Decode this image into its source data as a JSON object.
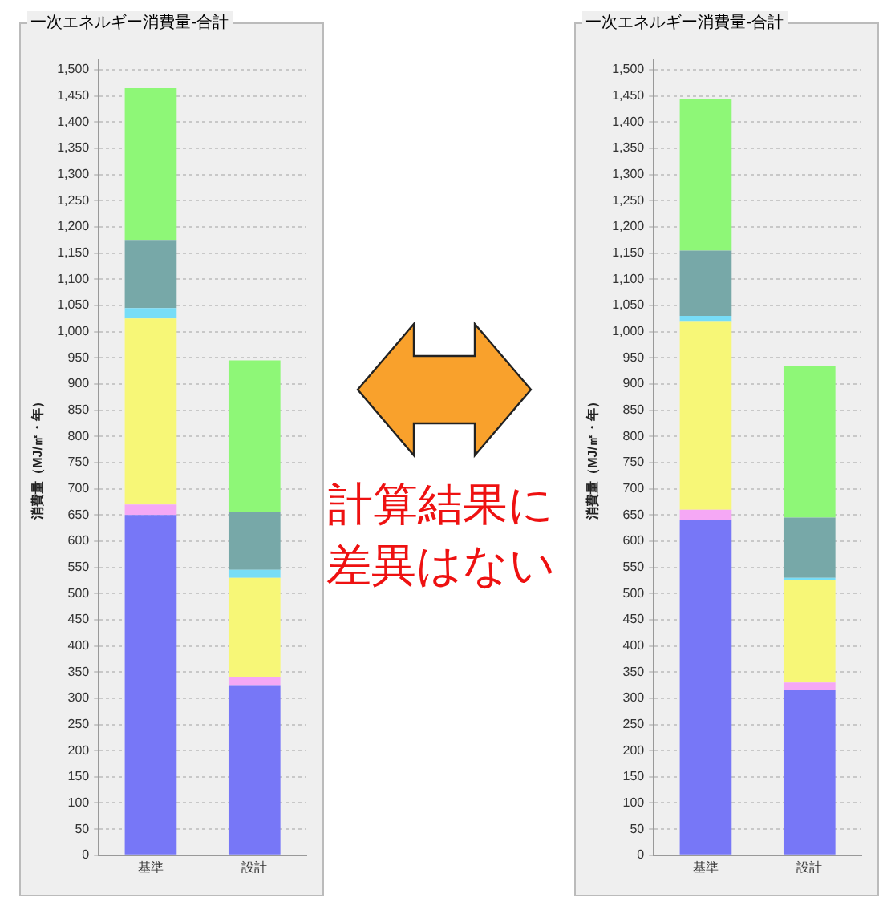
{
  "chart_data": [
    {
      "type": "bar",
      "title": "一次エネルギー消費量-合計",
      "ylabel": "消費量（MJ/㎡・年）",
      "categories": [
        "基準",
        "設計"
      ],
      "stacked": true,
      "series": [
        {
          "color": "#7777f7",
          "values": [
            650,
            325
          ]
        },
        {
          "color": "#f5a8f5",
          "values": [
            20,
            15
          ]
        },
        {
          "color": "#f7f777",
          "values": [
            355,
            190
          ]
        },
        {
          "color": "#77ddf7",
          "values": [
            20,
            15
          ]
        },
        {
          "color": "#77a8a8",
          "values": [
            130,
            110
          ]
        },
        {
          "color": "#8ef777",
          "values": [
            290,
            290
          ]
        }
      ],
      "ylim": [
        0,
        1520
      ],
      "yticks": [
        0,
        50,
        100,
        150,
        200,
        250,
        300,
        350,
        400,
        450,
        500,
        550,
        600,
        650,
        700,
        750,
        800,
        850,
        900,
        950,
        {
          "value": 1000,
          "label": "1,000"
        },
        {
          "value": 1050,
          "label": "1,050"
        },
        {
          "value": 1100,
          "label": "1,100"
        },
        {
          "value": 1150,
          "label": "1,150"
        },
        {
          "value": 1200,
          "label": "1,200"
        },
        {
          "value": 1250,
          "label": "1,250"
        },
        {
          "value": 1300,
          "label": "1,300"
        },
        {
          "value": 1350,
          "label": "1,350"
        },
        {
          "value": 1400,
          "label": "1,400"
        },
        {
          "value": 1450,
          "label": "1,450"
        },
        {
          "value": 1500,
          "label": "1,500"
        }
      ],
      "grid": "y",
      "legend": false
    },
    {
      "type": "bar",
      "title": "一次エネルギー消費量-合計",
      "ylabel": "消費量（MJ/㎡・年）",
      "categories": [
        "基準",
        "設計"
      ],
      "stacked": true,
      "series": [
        {
          "color": "#7777f7",
          "values": [
            640,
            315
          ]
        },
        {
          "color": "#f5a8f5",
          "values": [
            20,
            15
          ]
        },
        {
          "color": "#f7f777",
          "values": [
            360,
            195
          ]
        },
        {
          "color": "#77ddf7",
          "values": [
            10,
            5
          ]
        },
        {
          "color": "#77a8a8",
          "values": [
            125,
            115
          ]
        },
        {
          "color": "#8ef777",
          "values": [
            290,
            290
          ]
        }
      ],
      "ylim": [
        0,
        1520
      ],
      "yticks": [
        0,
        50,
        100,
        150,
        200,
        250,
        300,
        350,
        400,
        450,
        500,
        550,
        600,
        650,
        700,
        750,
        800,
        850,
        900,
        950,
        {
          "value": 1000,
          "label": "1,000"
        },
        {
          "value": 1050,
          "label": "1,050"
        },
        {
          "value": 1100,
          "label": "1,100"
        },
        {
          "value": 1150,
          "label": "1,150"
        },
        {
          "value": 1200,
          "label": "1,200"
        },
        {
          "value": 1250,
          "label": "1,250"
        },
        {
          "value": 1300,
          "label": "1,300"
        },
        {
          "value": 1350,
          "label": "1,350"
        },
        {
          "value": 1400,
          "label": "1,400"
        },
        {
          "value": 1450,
          "label": "1,450"
        },
        {
          "value": 1500,
          "label": "1,500"
        }
      ],
      "grid": "y",
      "legend": false,
      "annotations": [
        "計算結果に差異はない"
      ]
    }
  ]
}
